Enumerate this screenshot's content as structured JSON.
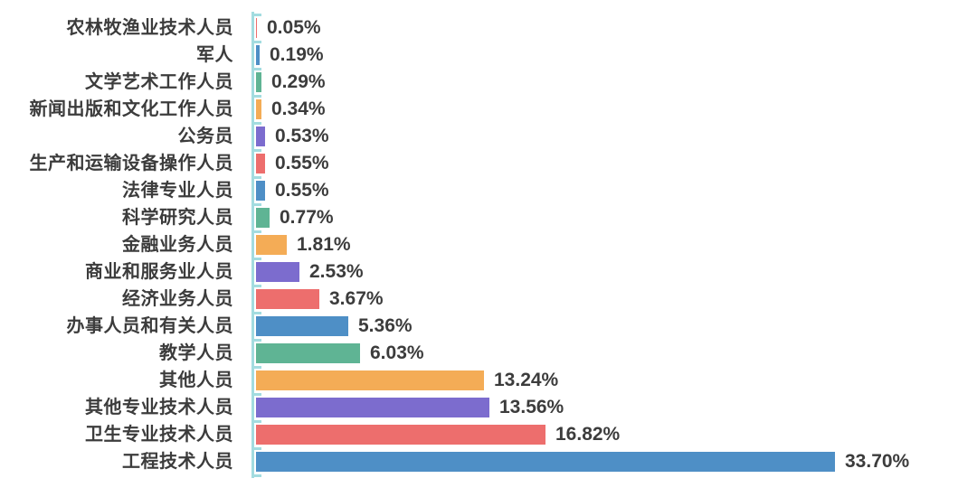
{
  "chart_data": {
    "type": "bar",
    "orientation": "horizontal",
    "title": "",
    "xlabel": "",
    "ylabel": "",
    "xlim": [
      0,
      35
    ],
    "grid": false,
    "legend": null,
    "axis_color": "#a3dce0",
    "text_color": "#3c3c3c",
    "palette": {
      "blue": "#4e8fc6",
      "red": "#ed6e6d",
      "purple": "#7c6cce",
      "orange": "#f4ac56",
      "green": "#5fb494"
    },
    "categories": [
      "农林牧渔业技术人员",
      "军人",
      "文学艺术工作人员",
      "新闻出版和文化工作人员",
      "公务员",
      "生产和运输设备操作人员",
      "法律专业人员",
      "科学研究人员",
      "金融业务人员",
      "商业和服务业人员",
      "经济业务人员",
      "办事人员和有关人员",
      "教学人员",
      "其他人员",
      "其他专业技术人员",
      "卫生专业技术人员",
      "工程技术人员"
    ],
    "values": [
      0.05,
      0.19,
      0.29,
      0.34,
      0.53,
      0.55,
      0.55,
      0.77,
      1.81,
      2.53,
      3.67,
      5.36,
      6.03,
      13.24,
      13.56,
      16.82,
      33.7
    ],
    "value_labels": [
      "0.05%",
      "0.19%",
      "0.29%",
      "0.34%",
      "0.53%",
      "0.55%",
      "0.55%",
      "0.77%",
      "1.81%",
      "2.53%",
      "3.67%",
      "5.36%",
      "6.03%",
      "13.24%",
      "13.56%",
      "16.82%",
      "33.70%"
    ],
    "bar_colors": [
      "#ed6e6d",
      "#4e8fc6",
      "#5fb494",
      "#f4ac56",
      "#7c6cce",
      "#ed6e6d",
      "#4e8fc6",
      "#5fb494",
      "#f4ac56",
      "#7c6cce",
      "#ed6e6d",
      "#4e8fc6",
      "#5fb494",
      "#f4ac56",
      "#7c6cce",
      "#ed6e6d",
      "#4e8fc6"
    ]
  }
}
